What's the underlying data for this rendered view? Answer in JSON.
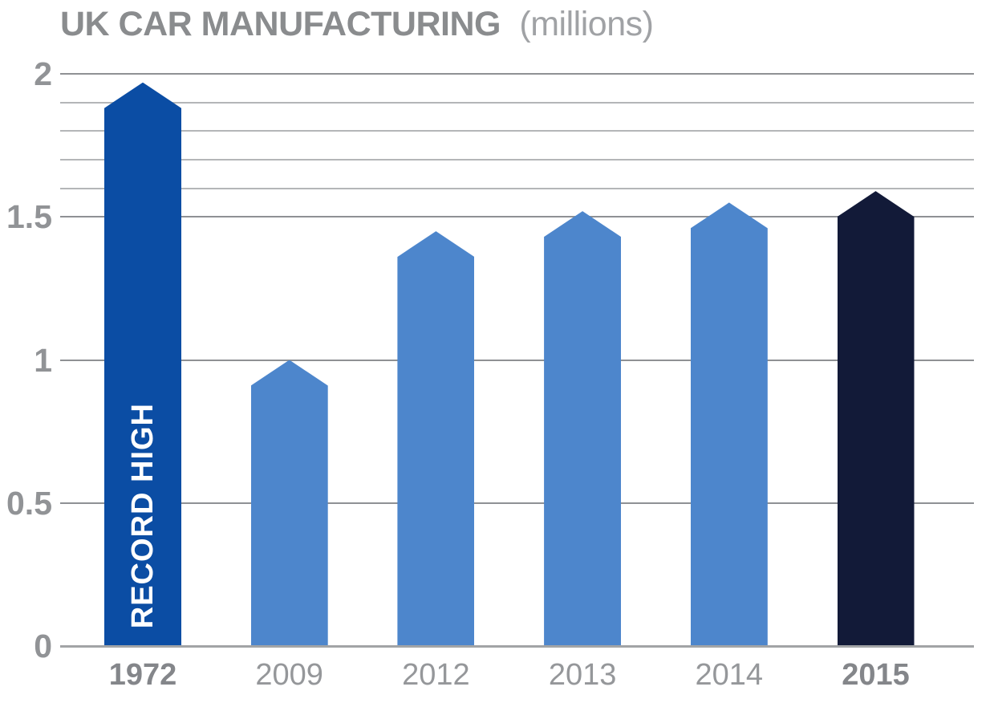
{
  "title": {
    "main": "UK CAR MANUFACTURING",
    "suffix": "(millions)"
  },
  "chart_data": {
    "type": "bar",
    "title": "UK CAR MANUFACTURING (millions)",
    "bar_shape": "pentagon-pointed-top",
    "categories": [
      "1972",
      "2009",
      "2012",
      "2013",
      "2014",
      "2015"
    ],
    "values": [
      1.97,
      1.0,
      1.45,
      1.52,
      1.55,
      1.59
    ],
    "shoulder_values": [
      1.88,
      0.91,
      1.36,
      1.43,
      1.46,
      1.5
    ],
    "bars": [
      {
        "year": "1972",
        "value": 1.97,
        "color_key": "record",
        "label_bold": true,
        "annotation": "RECORD HIGH"
      },
      {
        "year": "2009",
        "value": 1.0,
        "color_key": "regular",
        "label_bold": false,
        "annotation": ""
      },
      {
        "year": "2012",
        "value": 1.45,
        "color_key": "regular",
        "label_bold": false,
        "annotation": ""
      },
      {
        "year": "2013",
        "value": 1.52,
        "color_key": "regular",
        "label_bold": false,
        "annotation": ""
      },
      {
        "year": "2014",
        "value": 1.55,
        "color_key": "regular",
        "label_bold": false,
        "annotation": ""
      },
      {
        "year": "2015",
        "value": 1.59,
        "color_key": "latest",
        "label_bold": true,
        "annotation": ""
      }
    ],
    "y_axis": {
      "min": 0,
      "max": 2,
      "major_ticks": [
        {
          "value": 2,
          "label": "2"
        },
        {
          "value": 1.5,
          "label": "1.5"
        },
        {
          "value": 1,
          "label": "1"
        },
        {
          "value": 0.5,
          "label": "0.5"
        },
        {
          "value": 0,
          "label": "0"
        }
      ],
      "minor_gridlines": [
        1.9,
        1.8,
        1.7,
        1.6
      ]
    },
    "xlabel": "",
    "ylabel": "",
    "legend": "none",
    "grid": "horizontal-only"
  },
  "colors": {
    "bar_record": "#0b4da4",
    "bar_regular": "#4d86cc",
    "bar_latest": "#121a38",
    "grid_major": "#8f9194",
    "grid_minor": "#b4b6b8",
    "baseline": "#a2a4a6",
    "title_main": "#8a8c8e",
    "title_suffix": "#a0a2a5",
    "y_tick_text": "#919396",
    "x_tick_text": "#95979a",
    "x_tick_text_bold": "#84868a",
    "annotation_text": "#ffffff"
  }
}
